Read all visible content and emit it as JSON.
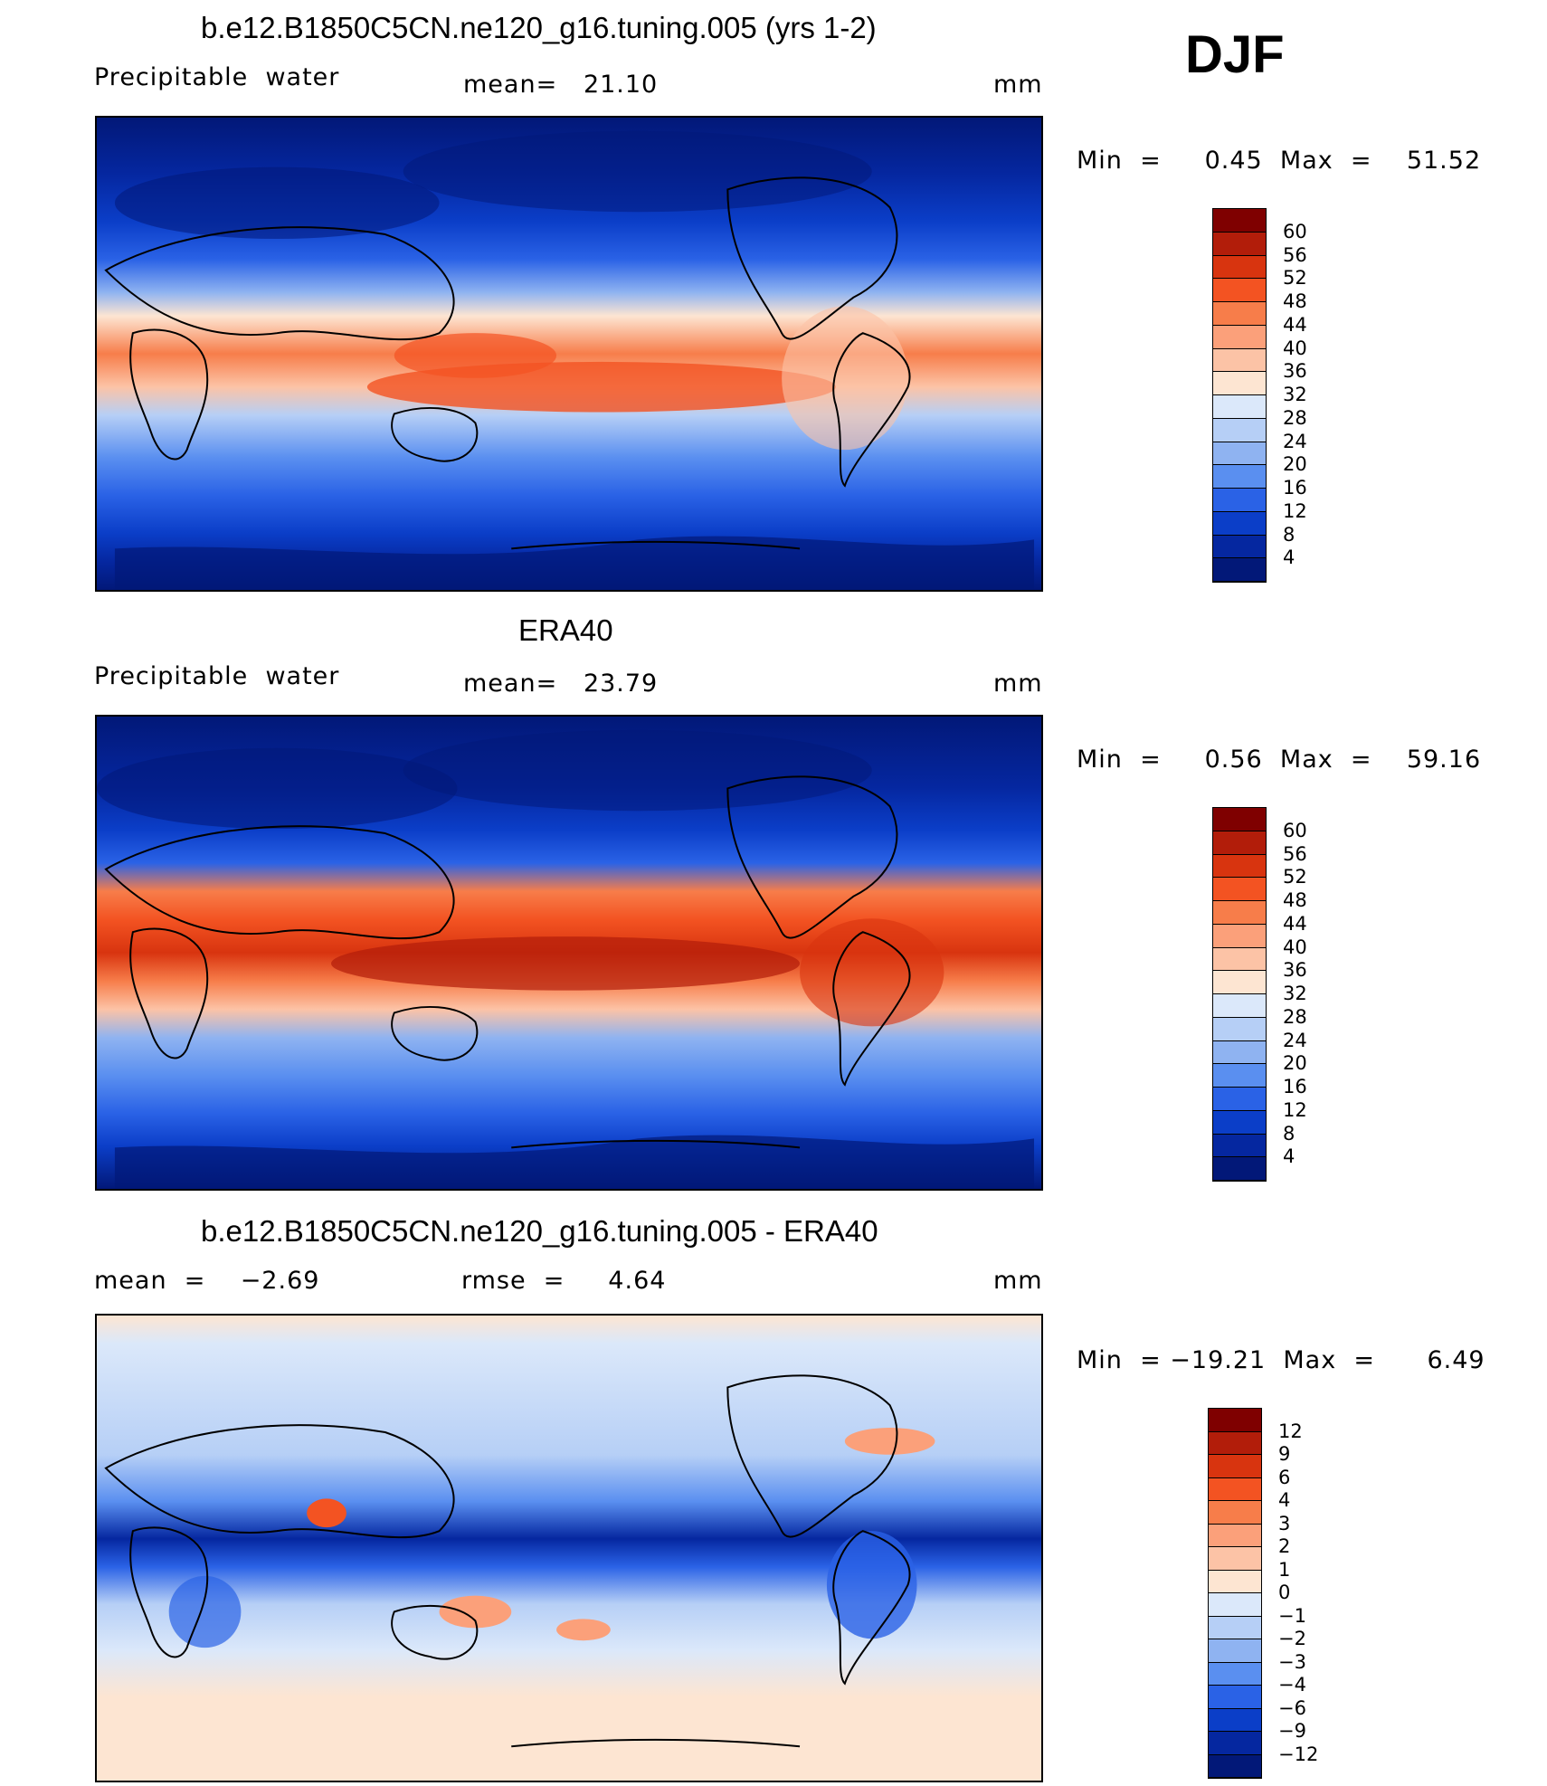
{
  "season_label": "DJF",
  "panels": [
    {
      "title": "b.e12.B1850C5CN.ne120_g16.tuning.005 (yrs 1-2)",
      "left_label": "Precipitable  water",
      "center_label": "mean=   21.10",
      "units": "mm",
      "minmax": "Min  =     0.45  Max  =    51.52",
      "colorbar": {
        "levels": [
          "60",
          "56",
          "52",
          "48",
          "44",
          "40",
          "36",
          "32",
          "28",
          "24",
          "20",
          "16",
          "12",
          "8",
          "4"
        ],
        "colors": [
          "#7f0000",
          "#b21d0a",
          "#d8340f",
          "#f35322",
          "#f77d4a",
          "#fba07a",
          "#fcc3a6",
          "#fde5d2",
          "#dbe8fa",
          "#b6cff6",
          "#8fb3f1",
          "#5a8ff0",
          "#2a62e6",
          "#0b3ec8",
          "#0527a0",
          "#021878"
        ]
      },
      "chart_data": {
        "type": "heatmap",
        "title": "b.e12.B1850C5CN.ne120_g16.tuning.005 (yrs 1-2)",
        "variable": "Precipitable  water",
        "units": "mm",
        "mean": 21.1,
        "min": 0.45,
        "max": 51.52,
        "contour_levels": [
          4,
          8,
          12,
          16,
          20,
          24,
          28,
          32,
          36,
          40,
          44,
          48,
          52,
          56,
          60
        ]
      }
    },
    {
      "title": "ERA40",
      "left_label": "Precipitable  water",
      "center_label": "mean=   23.79",
      "units": "mm",
      "minmax": "Min  =     0.56  Max  =    59.16",
      "colorbar": {
        "levels": [
          "60",
          "56",
          "52",
          "48",
          "44",
          "40",
          "36",
          "32",
          "28",
          "24",
          "20",
          "16",
          "12",
          "8",
          "4"
        ],
        "colors": [
          "#7f0000",
          "#b21d0a",
          "#d8340f",
          "#f35322",
          "#f77d4a",
          "#fba07a",
          "#fcc3a6",
          "#fde5d2",
          "#dbe8fa",
          "#b6cff6",
          "#8fb3f1",
          "#5a8ff0",
          "#2a62e6",
          "#0b3ec8",
          "#0527a0",
          "#021878"
        ]
      },
      "chart_data": {
        "type": "heatmap",
        "title": "ERA40",
        "variable": "Precipitable  water",
        "units": "mm",
        "mean": 23.79,
        "min": 0.56,
        "max": 59.16,
        "contour_levels": [
          4,
          8,
          12,
          16,
          20,
          24,
          28,
          32,
          36,
          40,
          44,
          48,
          52,
          56,
          60
        ]
      }
    },
    {
      "title": "b.e12.B1850C5CN.ne120_g16.tuning.005 - ERA40",
      "left_label": "mean  =    −2.69",
      "center_label": "rmse  =     4.64",
      "units": "mm",
      "minmax": "Min  = −19.21  Max  =      6.49",
      "colorbar": {
        "levels": [
          "12",
          "9",
          "6",
          "4",
          "3",
          "2",
          "1",
          "0",
          "−1",
          "−2",
          "−3",
          "−4",
          "−6",
          "−9",
          "−12"
        ],
        "colors": [
          "#7f0000",
          "#b21d0a",
          "#d8340f",
          "#f35322",
          "#f77d4a",
          "#fba07a",
          "#fcc3a6",
          "#fde5d2",
          "#dbe8fa",
          "#b6cff6",
          "#8fb3f1",
          "#5a8ff0",
          "#2a62e6",
          "#0b3ec8",
          "#0527a0",
          "#021878"
        ]
      },
      "chart_data": {
        "type": "heatmap",
        "title": "b.e12.B1850C5CN.ne120_g16.tuning.005 - ERA40",
        "units": "mm",
        "mean": -2.69,
        "rmse": 4.64,
        "min": -19.21,
        "max": 6.49,
        "contour_levels": [
          -12,
          -9,
          -6,
          -4,
          -3,
          -2,
          -1,
          0,
          1,
          2,
          3,
          4,
          6,
          9,
          12
        ]
      }
    }
  ]
}
